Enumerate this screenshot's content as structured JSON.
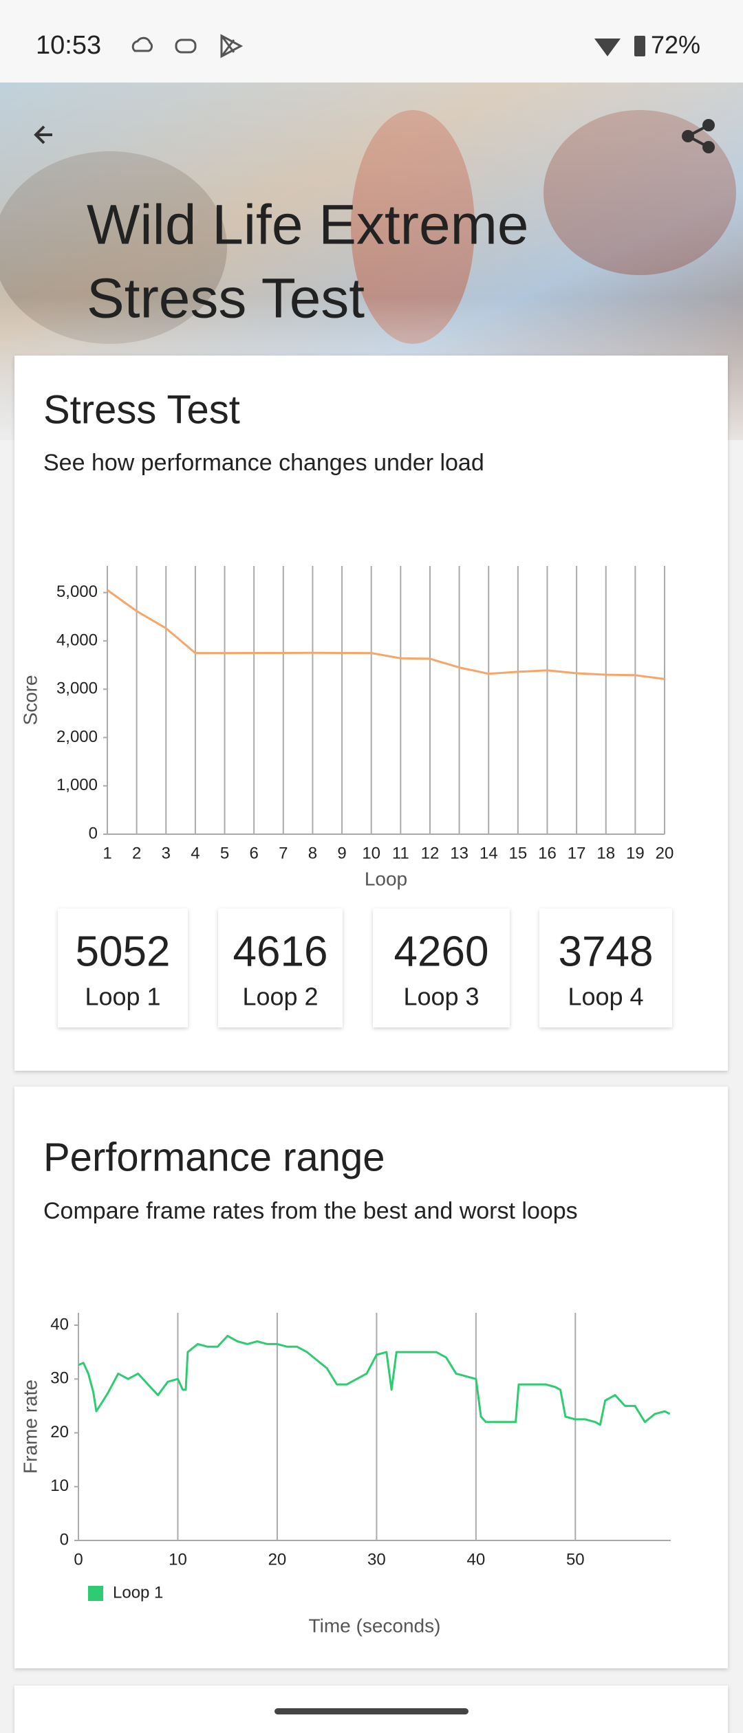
{
  "status_bar": {
    "time": "10:53",
    "battery": "72%"
  },
  "header": {
    "title_lines": [
      "Wild Life Extreme",
      "Stress Test"
    ]
  },
  "stress_card": {
    "title": "Stress Test",
    "subtitle": "See how performance changes under load"
  },
  "loop_cards": {
    "scores": [
      5052,
      4616,
      4260,
      3748
    ],
    "labels": [
      "Loop 1",
      "Loop 2",
      "Loop 3",
      "Loop 4"
    ]
  },
  "performance_card": {
    "title": "Performance range",
    "subtitle": "Compare frame rates from the best and worst loops"
  },
  "chart_data": [
    {
      "type": "line",
      "x_label": "Loop",
      "y_label": "Score",
      "x": [
        1,
        2,
        3,
        4,
        5,
        6,
        7,
        8,
        9,
        10,
        11,
        12,
        13,
        14,
        15,
        16,
        17,
        18,
        19,
        20
      ],
      "values": [
        5052,
        4616,
        4260,
        3748,
        3748,
        3750,
        3750,
        3752,
        3750,
        3748,
        3640,
        3630,
        3450,
        3320,
        3360,
        3390,
        3330,
        3300,
        3290,
        3210
      ],
      "color": "#f5a668",
      "xlim": [
        1,
        20
      ],
      "xticks": [
        1,
        2,
        3,
        4,
        5,
        6,
        7,
        8,
        9,
        10,
        11,
        12,
        13,
        14,
        15,
        16,
        17,
        18,
        19,
        20
      ],
      "ylim": [
        0,
        5550
      ],
      "yticks": [
        0,
        {
          "value": 1000,
          "label": "1,000"
        },
        {
          "value": 2000,
          "label": "2,000"
        },
        {
          "value": 3000,
          "label": "3,000"
        },
        {
          "value": 4000,
          "label": "4,000"
        },
        {
          "value": 5000,
          "label": "5,000"
        }
      ],
      "grid": "x"
    },
    {
      "type": "line",
      "x_label": "Time (seconds)",
      "y_label": "Frame rate",
      "x": [
        0,
        0.5,
        1,
        1.5,
        1.8,
        2.5,
        3,
        4,
        5,
        6,
        7,
        8,
        9,
        10,
        10.5,
        10.8,
        11,
        12,
        13,
        14,
        15,
        16,
        17,
        18,
        19,
        20,
        21,
        22,
        23,
        24,
        25,
        26,
        27,
        28,
        29,
        30,
        31,
        31.5,
        32,
        33,
        34,
        35,
        36,
        37,
        38,
        39,
        40,
        40.5,
        41,
        42,
        43,
        44,
        44.3,
        45,
        46,
        47,
        48,
        48.5,
        49,
        50,
        51,
        52,
        52.5,
        53,
        54,
        55,
        56,
        57,
        58,
        59,
        59.5
      ],
      "series": [
        {
          "name": "Loop 1",
          "color": "#2ecc71",
          "values": [
            32.6,
            33,
            31,
            27.5,
            24,
            26,
            27.5,
            31,
            30,
            31,
            29,
            27,
            29.5,
            30,
            28,
            28,
            35,
            36.5,
            36,
            36,
            38,
            37,
            36.5,
            37,
            36.5,
            36.5,
            36,
            36,
            35,
            33.5,
            32,
            29,
            29,
            30,
            31,
            34.5,
            35,
            28,
            35,
            35,
            35,
            35,
            35,
            34,
            31,
            30.5,
            30,
            23,
            22,
            22,
            22,
            22,
            29,
            29,
            29,
            29,
            28.5,
            28,
            23,
            22.5,
            22.5,
            22,
            21.5,
            26,
            27,
            25,
            25,
            22,
            23.5,
            24,
            23.5
          ]
        }
      ],
      "xlim": [
        0,
        59.6
      ],
      "xticks": [
        0,
        10,
        20,
        30,
        40,
        50
      ],
      "ylim": [
        0,
        42.3
      ],
      "yticks": [
        0,
        10,
        20,
        30,
        40
      ],
      "grid": "x",
      "legend": "bottom-left"
    }
  ]
}
